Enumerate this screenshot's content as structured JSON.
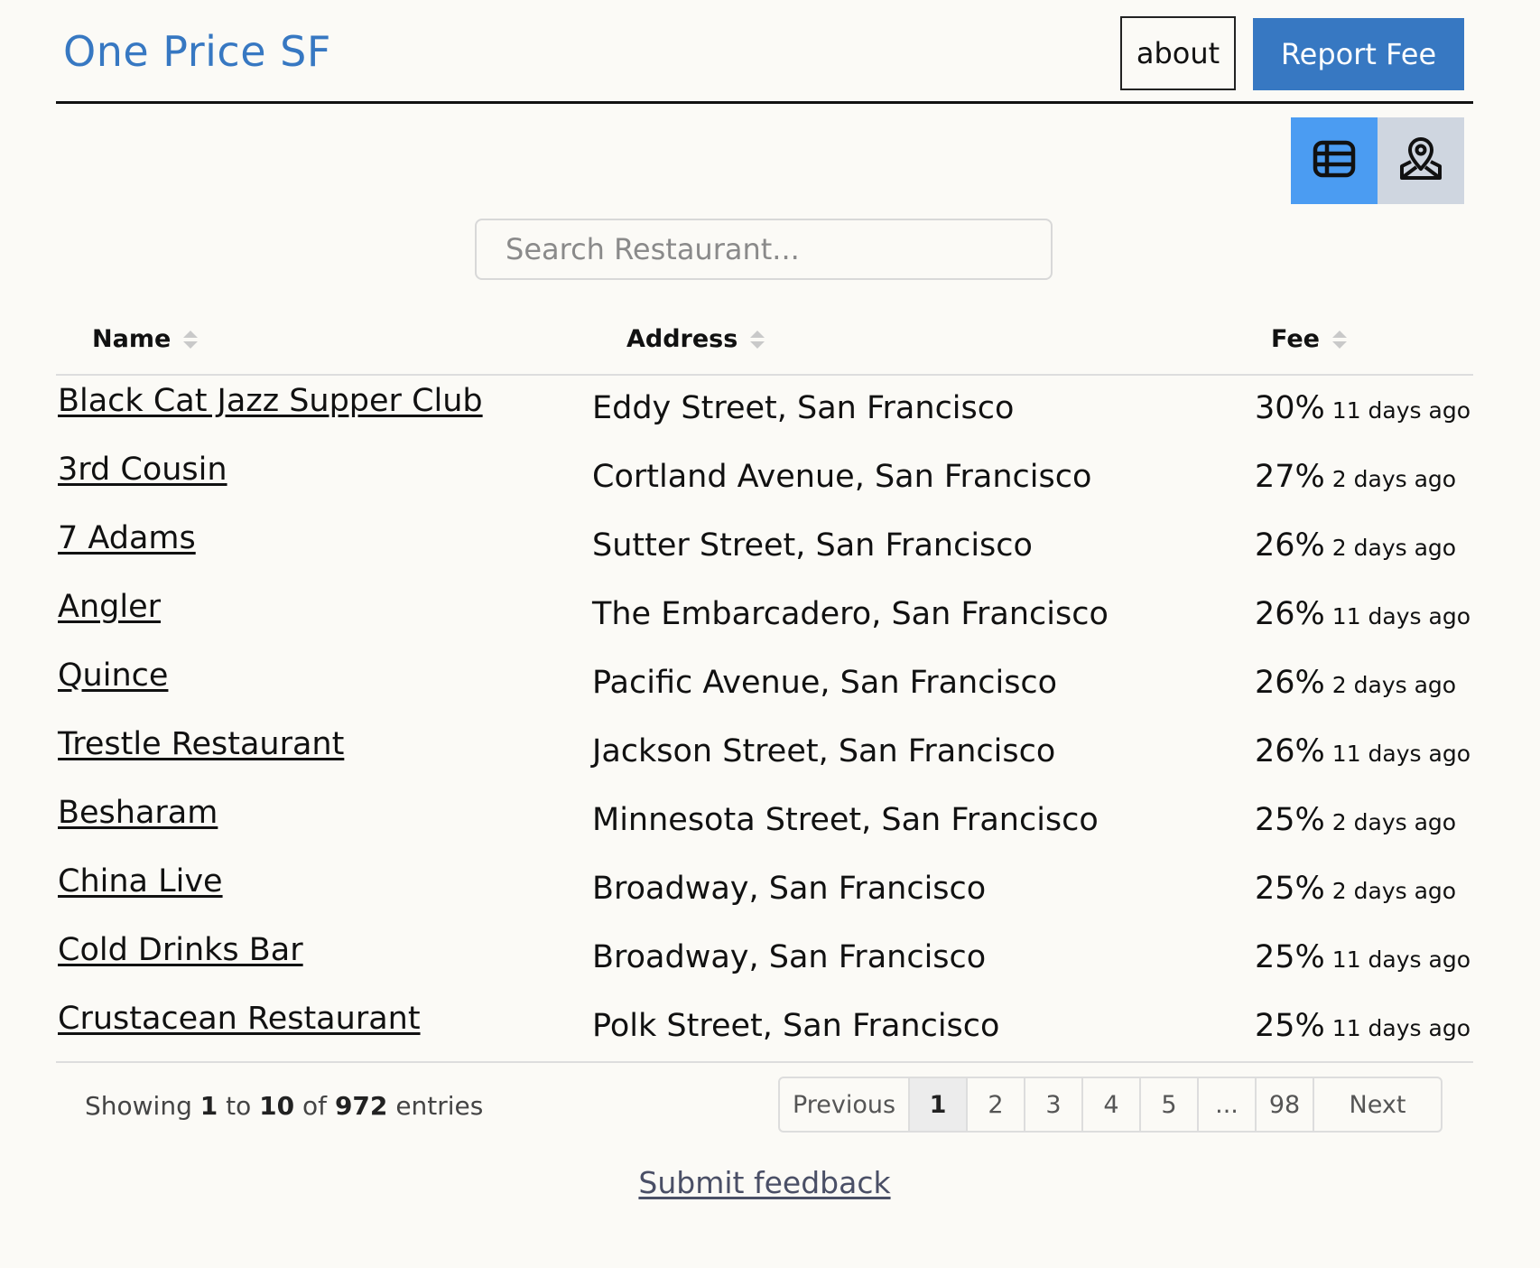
{
  "header": {
    "brand": "One Price SF",
    "about_label": "about",
    "report_label": "Report Fee"
  },
  "view_toggle": {
    "table_icon": "table-icon",
    "map_icon": "map-pin-icon",
    "active": "table",
    "active_color": "#4b9cf2",
    "inactive_color": "#cfd6e0"
  },
  "search": {
    "placeholder": "Search Restaurant...",
    "value": ""
  },
  "table": {
    "headers": {
      "name": "Name",
      "address": "Address",
      "fee": "Fee"
    },
    "rows": [
      {
        "name": "Black Cat Jazz Supper Club",
        "address": "Eddy Street, San Francisco",
        "fee": "30%",
        "time": "11 days ago"
      },
      {
        "name": "3rd Cousin",
        "address": "Cortland Avenue, San Francisco",
        "fee": "27%",
        "time": "2 days ago"
      },
      {
        "name": "7 Adams",
        "address": "Sutter Street, San Francisco",
        "fee": "26%",
        "time": "2 days ago"
      },
      {
        "name": "Angler",
        "address": "The Embarcadero, San Francisco",
        "fee": "26%",
        "time": "11 days ago"
      },
      {
        "name": "Quince",
        "address": "Pacific Avenue, San Francisco",
        "fee": "26%",
        "time": "2 days ago"
      },
      {
        "name": "Trestle Restaurant",
        "address": "Jackson Street, San Francisco",
        "fee": "26%",
        "time": "11 days ago"
      },
      {
        "name": "Besharam",
        "address": "Minnesota Street, San Francisco",
        "fee": "25%",
        "time": "2 days ago"
      },
      {
        "name": "China Live",
        "address": "Broadway, San Francisco",
        "fee": "25%",
        "time": "2 days ago"
      },
      {
        "name": "Cold Drinks Bar",
        "address": "Broadway, San Francisco",
        "fee": "25%",
        "time": "11 days ago"
      },
      {
        "name": "Crustacean Restaurant",
        "address": "Polk Street, San Francisco",
        "fee": "25%",
        "time": "11 days ago"
      }
    ]
  },
  "footer": {
    "showing_prefix": "Showing",
    "showing_from": "1",
    "showing_to_word": "to",
    "showing_to": "10",
    "showing_of_word": "of",
    "showing_total": "972",
    "showing_suffix": "entries",
    "pagination": {
      "previous": "Previous",
      "pages": [
        "1",
        "2",
        "3",
        "4",
        "5",
        "...",
        "98"
      ],
      "current": "1",
      "next": "Next"
    },
    "feedback": "Submit feedback"
  },
  "colors": {
    "brand": "#3778c2",
    "background": "#fbfaf6"
  }
}
